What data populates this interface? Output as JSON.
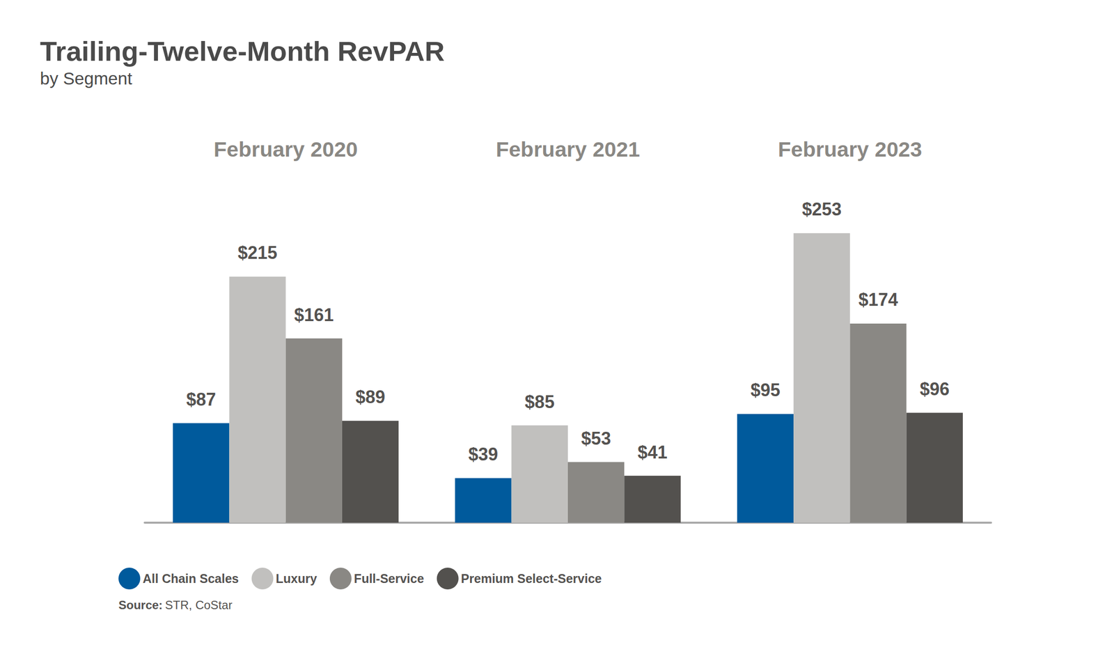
{
  "chart_data": {
    "type": "bar",
    "title": "Trailing-Twelve-Month RevPAR",
    "subtitle": "by Segment",
    "categories": [
      "February 2020",
      "February 2021",
      "February 2023"
    ],
    "series": [
      {
        "name": "All Chain Scales",
        "color": "#005a9c",
        "values": [
          87,
          39,
          95
        ],
        "value_labels": [
          "$87",
          "$39",
          "$95"
        ]
      },
      {
        "name": "Luxury",
        "color": "#c1c0be",
        "values": [
          215,
          85,
          253
        ],
        "value_labels": [
          "$215",
          "$85",
          "$253"
        ]
      },
      {
        "name": "Full-Service",
        "color": "#8a8884",
        "values": [
          161,
          53,
          174
        ],
        "value_labels": [
          "$161",
          "$53",
          "$174"
        ]
      },
      {
        "name": "Premium Select-Service",
        "color": "#53514e",
        "values": [
          89,
          41,
          96
        ],
        "value_labels": [
          "$89",
          "$41",
          "$96"
        ]
      }
    ],
    "ylim": [
      0,
      300
    ],
    "yticks": [
      0,
      300
    ],
    "grid": false,
    "data_labels": true,
    "tick_labels": "x",
    "legend": "bottom-left",
    "source": {
      "label": "Source:",
      "text": "STR, CoStar"
    }
  }
}
